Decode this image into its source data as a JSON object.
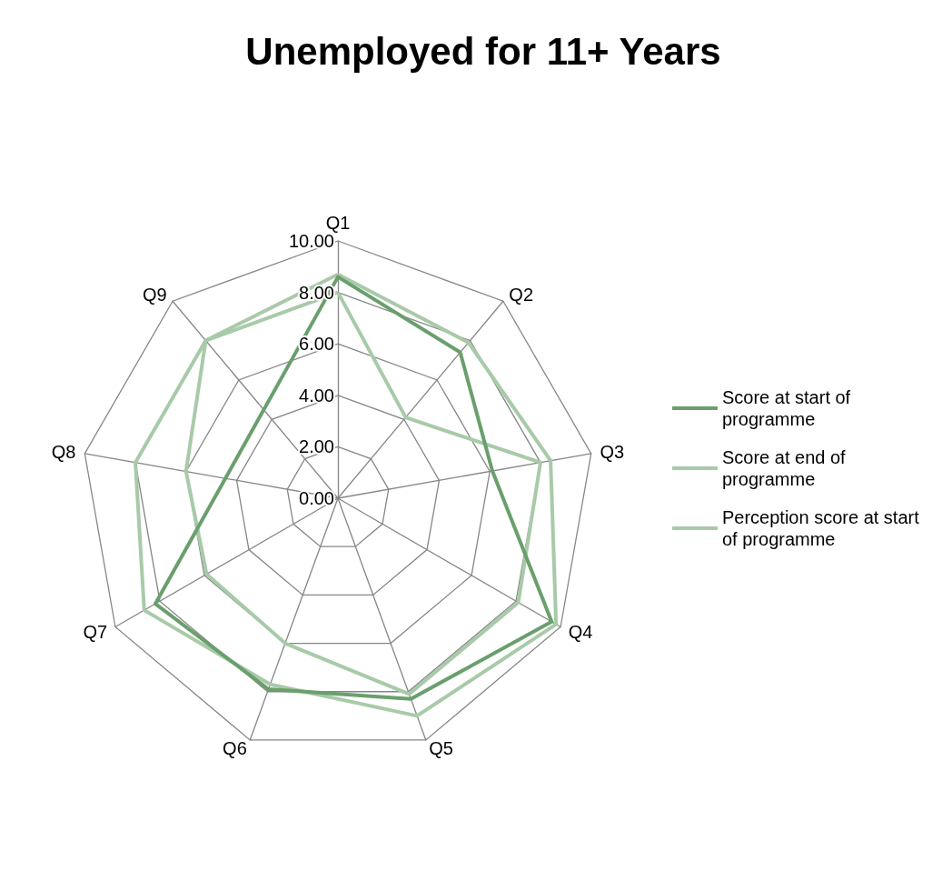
{
  "chart_data": {
    "type": "radar",
    "title": "Unemployed for 11+ Years",
    "categories": [
      "Q1",
      "Q2",
      "Q3",
      "Q4",
      "Q5",
      "Q6",
      "Q7",
      "Q8",
      "Q9"
    ],
    "series": [
      {
        "name": "Score at start of programme",
        "color": "#6a9f6d",
        "values": [
          8.6,
          7.4,
          6.1,
          9.6,
          8.3,
          7.9,
          8.2,
          null,
          null
        ]
      },
      {
        "name": "Score at end of programme",
        "color": "#a8caa9",
        "values": [
          8.7,
          7.9,
          8.4,
          9.8,
          9.0,
          7.7,
          8.7,
          8.0,
          8.0
        ]
      },
      {
        "name": "Perception score at start of programme",
        "color": "#a8caa9",
        "values": [
          8.0,
          4.1,
          8.0,
          8.1,
          8.1,
          6.0,
          5.9,
          6.0,
          8.0
        ]
      }
    ],
    "ylim": [
      0,
      10
    ],
    "yticks": [
      {
        "value": 0,
        "label": "0.00"
      },
      {
        "value": 2,
        "label": "2.00"
      },
      {
        "value": 4,
        "label": "4.00"
      },
      {
        "value": 6,
        "label": "6.00"
      },
      {
        "value": 8,
        "label": "8.00"
      },
      {
        "value": 10,
        "label": "10.00"
      }
    ],
    "grid": true,
    "legend": "right",
    "marker": "none",
    "line_style": "solid"
  }
}
